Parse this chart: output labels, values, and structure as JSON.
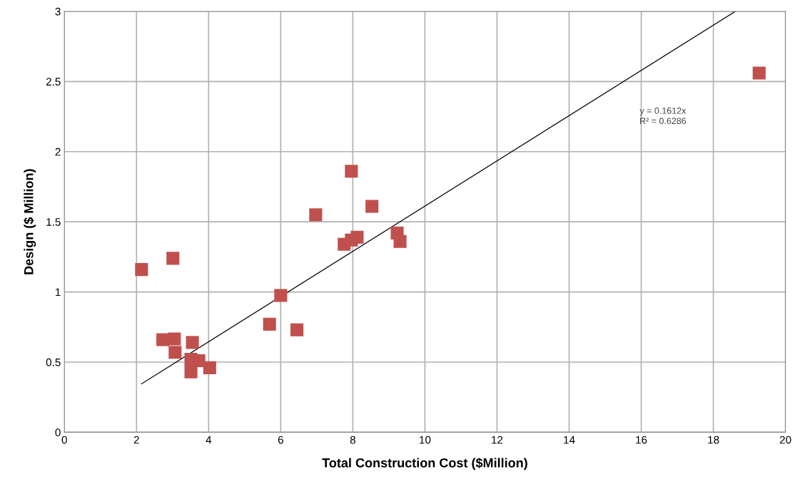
{
  "chart_data": {
    "type": "scatter",
    "xlabel": "Total Construction Cost ($Million)",
    "ylabel": "Design ($ Million)",
    "xlim": [
      0,
      20
    ],
    "xticks": [
      0,
      2,
      4,
      6,
      8,
      10,
      12,
      14,
      16,
      18,
      20
    ],
    "ylim": [
      0,
      3
    ],
    "yticks": [
      0,
      0.5,
      1,
      1.5,
      2,
      2.5,
      3
    ],
    "grid": true,
    "marker": "square",
    "series": [
      {
        "color": "#c0504d",
        "x": [
          2.14,
          3.01,
          2.73,
          3.05,
          3.07,
          3.55,
          3.51,
          3.51,
          3.73,
          4.03,
          5.69,
          6.45,
          6.0,
          6.97,
          7.96,
          8.53,
          7.76,
          7.96,
          8.12,
          9.23,
          9.31,
          19.27
        ],
        "values": [
          1.16,
          1.24,
          0.66,
          0.665,
          0.57,
          0.64,
          0.52,
          0.43,
          0.51,
          0.46,
          0.77,
          0.73,
          0.975,
          1.55,
          1.86,
          1.61,
          1.34,
          1.37,
          1.39,
          1.42,
          1.36,
          2.56
        ]
      },
      {
        "type": "line",
        "color": "#000000",
        "x": [
          2.14,
          18.61
        ],
        "values": [
          0.345,
          3.0
        ],
        "marker": "none"
      }
    ],
    "annotations": [
      "y = 0.1612x",
      "R² = 0.6286"
    ]
  }
}
